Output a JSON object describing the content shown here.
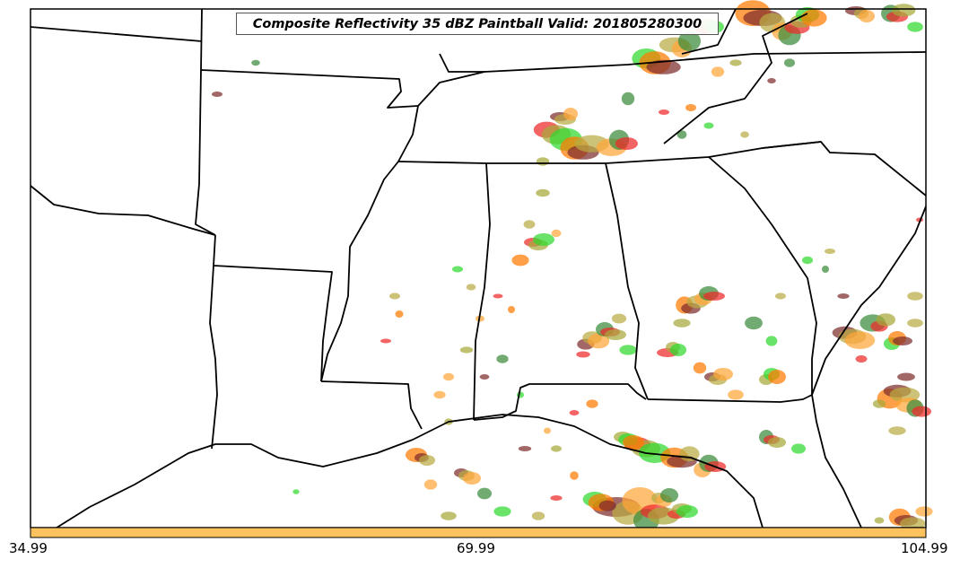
{
  "title": "Composite Reflectivity 35 dBZ Paintball Valid: 201805280300",
  "colorbar": {
    "color": "#fcc25e",
    "ticks": [
      "34.99",
      "69.99",
      "104.99"
    ]
  },
  "colors": {
    "echo_palette": [
      "#ee2a2a",
      "#ff7a00",
      "#ffa63a",
      "#a8a83a",
      "#7e2c2c",
      "#3a8a3a",
      "#2fd92f",
      "#b8aa44"
    ],
    "state_lines": "#000000",
    "frame": "#000000"
  }
}
